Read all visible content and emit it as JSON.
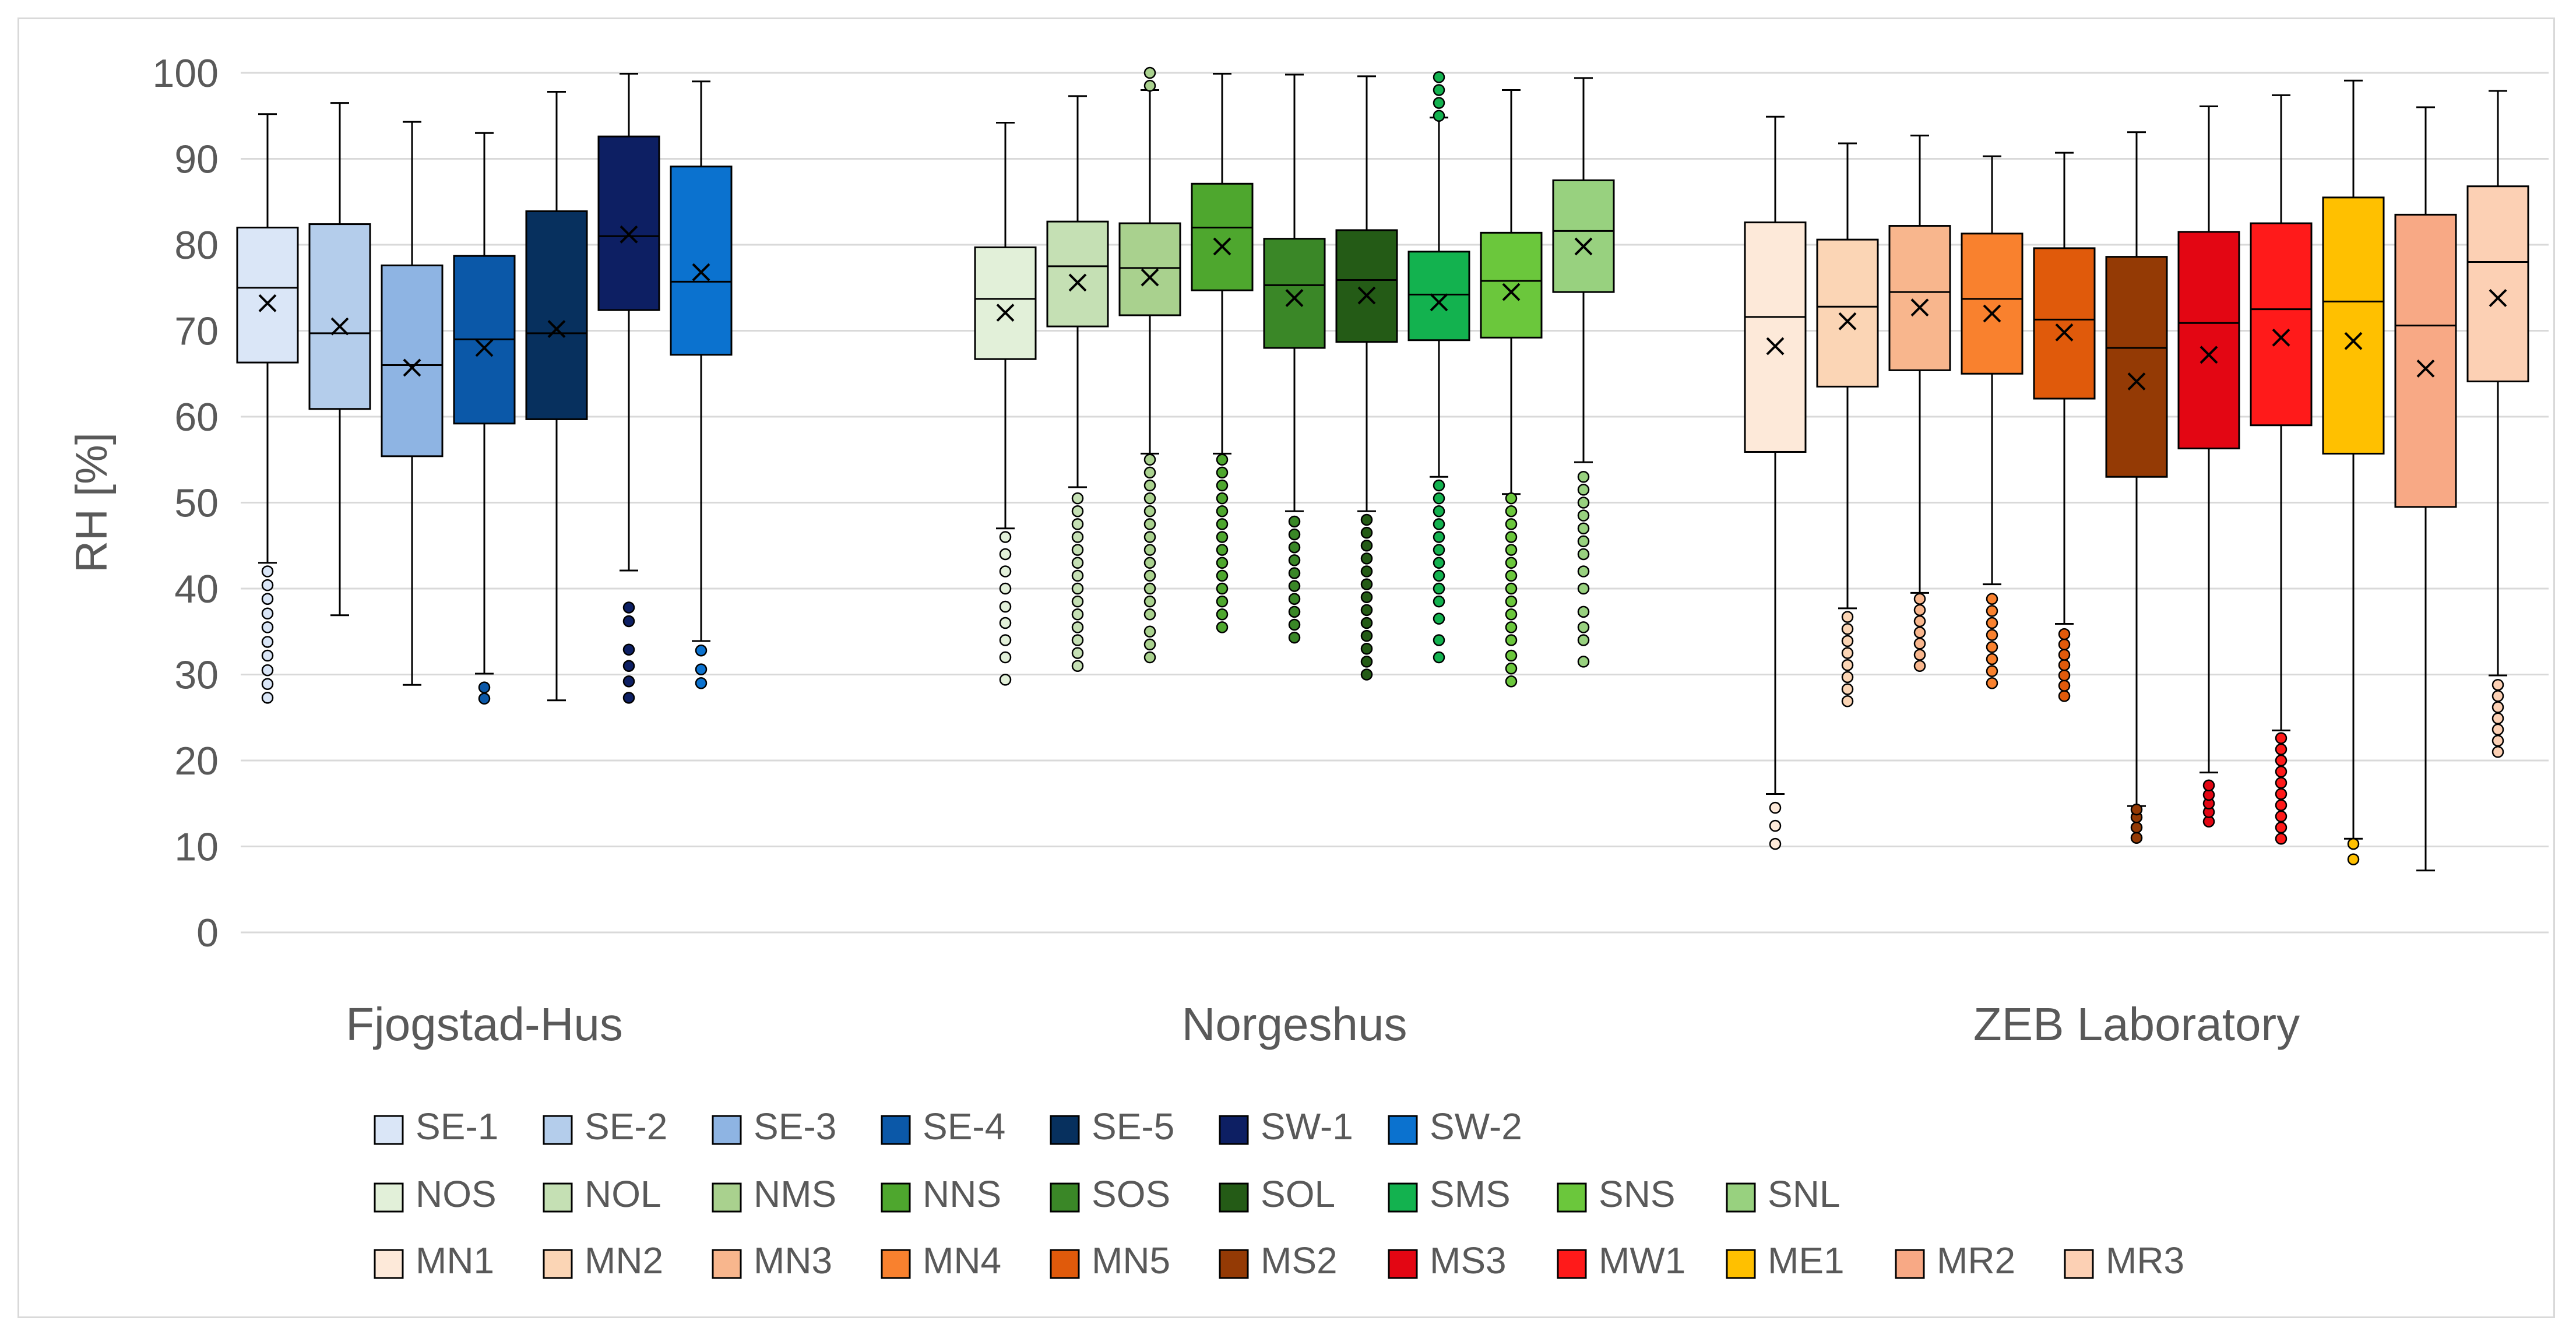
{
  "chart_data": {
    "type": "boxplot",
    "ylabel": "RH [%]",
    "ylim": [
      0,
      100
    ],
    "yticks": [
      0,
      10,
      20,
      30,
      40,
      50,
      60,
      70,
      80,
      90,
      100
    ],
    "grid": true,
    "legend_position": "bottom",
    "mean_marker": "x",
    "groups": [
      {
        "label": "Fjogstad-Hus",
        "series": [
          {
            "name": "SE-1",
            "color": "#dae6f7",
            "whisker_low": 43,
            "q1": 66.3,
            "median": 75,
            "q3": 82,
            "whisker_high": 95.2,
            "mean": 73.2,
            "outliers": [
              27.3,
              28.9,
              30.5,
              32.2,
              33.8,
              35.5,
              37.1,
              38.8,
              40.4,
              42
            ]
          },
          {
            "name": "SE-2",
            "color": "#b4cdeb",
            "whisker_low": 36.9,
            "q1": 60.9,
            "median": 69.7,
            "q3": 82.4,
            "whisker_high": 96.5,
            "mean": 70.5,
            "outliers": []
          },
          {
            "name": "SE-3",
            "color": "#8eb4e3",
            "whisker_low": 28.8,
            "q1": 55.4,
            "median": 66,
            "q3": 77.6,
            "whisker_high": 94.3,
            "mean": 65.7,
            "outliers": []
          },
          {
            "name": "SE-4",
            "color": "#0b58a8",
            "whisker_low": 30.1,
            "q1": 59.2,
            "median": 69,
            "q3": 78.7,
            "whisker_high": 93,
            "mean": 68,
            "outliers": [
              27.2,
              28.5
            ]
          },
          {
            "name": "SE-5",
            "color": "#07305e",
            "whisker_low": 27,
            "q1": 59.7,
            "median": 69.7,
            "q3": 83.9,
            "whisker_high": 97.8,
            "mean": 70.2,
            "outliers": []
          },
          {
            "name": "SW-1",
            "color": "#0d1f63",
            "whisker_low": 42.1,
            "q1": 72.4,
            "median": 81,
            "q3": 92.6,
            "whisker_high": 99.9,
            "mean": 81.2,
            "outliers": [
              27.3,
              29.2,
              31,
              32.9,
              36.2,
              37.8
            ]
          },
          {
            "name": "SW-2",
            "color": "#0b72cf",
            "whisker_low": 33.9,
            "q1": 67.2,
            "median": 75.7,
            "q3": 89.1,
            "whisker_high": 99,
            "mean": 76.8,
            "outliers": [
              29,
              30.6,
              32.8
            ]
          }
        ]
      },
      {
        "label": "Norgeshus",
        "series": [
          {
            "name": "NOS",
            "color": "#e2f0d9",
            "whisker_low": 47,
            "q1": 66.7,
            "median": 73.7,
            "q3": 79.7,
            "whisker_high": 94.2,
            "mean": 72.1,
            "outliers": [
              29.4,
              32,
              34,
              36,
              37.9,
              40,
              42,
              44,
              46
            ]
          },
          {
            "name": "NOL",
            "color": "#c5e0b4",
            "whisker_low": 51.8,
            "q1": 70.5,
            "median": 77.5,
            "q3": 82.7,
            "whisker_high": 97.3,
            "mean": 75.6,
            "outliers": [
              31,
              32.5,
              34,
              35.5,
              37,
              38.5,
              40,
              41.5,
              43,
              44.5,
              46,
              47.5,
              49,
              50.5
            ]
          },
          {
            "name": "NMS",
            "color": "#a9d18e",
            "whisker_low": 55.7,
            "q1": 71.8,
            "median": 77.3,
            "q3": 82.5,
            "whisker_high": 98,
            "mean": 76.2,
            "outliers": [
              32,
              33.5,
              35,
              37,
              38.5,
              40,
              41.5,
              43,
              44.5,
              46,
              47.5,
              49,
              50.5,
              52,
              53.5,
              55,
              98.5,
              100
            ]
          },
          {
            "name": "NNS",
            "color": "#4ea72e",
            "whisker_low": 55.7,
            "q1": 74.7,
            "median": 82,
            "q3": 87.1,
            "whisker_high": 99.9,
            "mean": 79.8,
            "outliers": [
              35.5,
              37,
              38.5,
              40,
              41.5,
              43,
              44.5,
              46,
              47.5,
              49,
              50.5,
              52,
              53.5,
              55
            ]
          },
          {
            "name": "SOS",
            "color": "#3a8727",
            "whisker_low": 49,
            "q1": 68,
            "median": 75.3,
            "q3": 80.7,
            "whisker_high": 99.8,
            "mean": 73.8,
            "outliers": [
              34.3,
              35.8,
              37.3,
              38.8,
              40.3,
              41.8,
              43.3,
              44.8,
              46.3,
              47.8
            ]
          },
          {
            "name": "SOL",
            "color": "#245b16",
            "whisker_low": 49,
            "q1": 68.7,
            "median": 75.9,
            "q3": 81.7,
            "whisker_high": 99.6,
            "mean": 74.1,
            "outliers": [
              30,
              31.5,
              33,
              34.5,
              36,
              37.5,
              39,
              40.5,
              42,
              43.5,
              45,
              46.5,
              48
            ]
          },
          {
            "name": "SMS",
            "color": "#13b24f",
            "whisker_low": 53,
            "q1": 68.9,
            "median": 74.2,
            "q3": 79.2,
            "whisker_high": 94.8,
            "mean": 73.3,
            "outliers": [
              32,
              34,
              36.5,
              38.5,
              40,
              41.5,
              43,
              44.5,
              46,
              47.5,
              49,
              50.5,
              52,
              95,
              96.5,
              98,
              99.5
            ]
          },
          {
            "name": "SNS",
            "color": "#6bc73c",
            "whisker_low": 51,
            "q1": 69.2,
            "median": 75.8,
            "q3": 81.4,
            "whisker_high": 98,
            "mean": 74.5,
            "outliers": [
              29.2,
              30.7,
              32.2,
              34,
              35.5,
              37,
              38.5,
              40,
              41.5,
              43,
              44.5,
              46,
              47.5,
              49,
              50.5
            ]
          },
          {
            "name": "SNL",
            "color": "#98d17f",
            "whisker_low": 54.7,
            "q1": 74.5,
            "median": 81.6,
            "q3": 87.5,
            "whisker_high": 99.4,
            "mean": 79.8,
            "outliers": [
              31.5,
              34,
              35.5,
              37.3,
              40,
              42,
              44,
              45.5,
              47,
              48.5,
              50,
              51.5,
              53
            ]
          }
        ]
      },
      {
        "label": "ZEB Laboratory",
        "series": [
          {
            "name": "MN1",
            "color": "#fde9d9",
            "whisker_low": 16.1,
            "q1": 55.9,
            "median": 71.6,
            "q3": 82.6,
            "whisker_high": 94.9,
            "mean": 68.2,
            "outliers": [
              10.3,
              12.4,
              14.5
            ]
          },
          {
            "name": "MN2",
            "color": "#fbd5b5",
            "whisker_low": 37.7,
            "q1": 63.5,
            "median": 72.8,
            "q3": 80.6,
            "whisker_high": 91.8,
            "mean": 71.1,
            "outliers": [
              26.9,
              28.3,
              29.7,
              31.1,
              32.5,
              33.9,
              35.3,
              36.7
            ]
          },
          {
            "name": "MN3",
            "color": "#f8b68d",
            "whisker_low": 39.5,
            "q1": 65.4,
            "median": 74.5,
            "q3": 82.2,
            "whisker_high": 92.7,
            "mean": 72.7,
            "outliers": [
              31,
              32.3,
              33.6,
              34.9,
              36.2,
              37.5,
              38.8
            ]
          },
          {
            "name": "MN4",
            "color": "#f9812e",
            "whisker_low": 40.5,
            "q1": 65,
            "median": 73.7,
            "q3": 81.3,
            "whisker_high": 90.3,
            "mean": 72,
            "outliers": [
              29,
              30.4,
              31.8,
              33.2,
              34.6,
              36,
              37.4,
              38.8
            ]
          },
          {
            "name": "MN5",
            "color": "#e05a0b",
            "whisker_low": 35.9,
            "q1": 62.1,
            "median": 71.3,
            "q3": 79.6,
            "whisker_high": 90.7,
            "mean": 69.8,
            "outliers": [
              27.5,
              28.7,
              29.9,
              31.1,
              32.3,
              33.5,
              34.7
            ]
          },
          {
            "name": "MS2",
            "color": "#943a05",
            "whisker_low": 14.7,
            "q1": 53,
            "median": 68,
            "q3": 78.6,
            "whisker_high": 93.1,
            "mean": 64.1,
            "outliers": [
              11,
              12.2,
              13.4,
              14.3
            ]
          },
          {
            "name": "MS3",
            "color": "#e30613",
            "whisker_low": 18.6,
            "q1": 56.3,
            "median": 70.9,
            "q3": 81.5,
            "whisker_high": 96.1,
            "mean": 67.2,
            "outliers": [
              12.9,
              14,
              15,
              16,
              17.1
            ]
          },
          {
            "name": "MW1",
            "color": "#ff1a1a",
            "whisker_low": 23.5,
            "q1": 59,
            "median": 72.5,
            "q3": 82.5,
            "whisker_high": 97.4,
            "mean": 69.2,
            "outliers": [
              10.9,
              12.2,
              13.5,
              14.8,
              16.1,
              17.4,
              18.7,
              20,
              21.3,
              22.6
            ]
          },
          {
            "name": "ME1",
            "color": "#ffc000",
            "whisker_low": 10.9,
            "q1": 55.7,
            "median": 73.4,
            "q3": 85.5,
            "whisker_high": 99.1,
            "mean": 68.8,
            "outliers": [
              8.5,
              10.3
            ]
          },
          {
            "name": "MR2",
            "color": "#f8a985",
            "whisker_low": 7.2,
            "q1": 49.5,
            "median": 70.6,
            "q3": 83.5,
            "whisker_high": 96,
            "mean": 65.6,
            "outliers": []
          },
          {
            "name": "MR3",
            "color": "#fcd0b4",
            "whisker_low": 29.9,
            "q1": 64.1,
            "median": 78,
            "q3": 86.8,
            "whisker_high": 97.9,
            "mean": 73.8,
            "outliers": [
              21,
              22.3,
              23.6,
              24.9,
              26.2,
              27.5,
              28.8
            ]
          }
        ]
      }
    ]
  }
}
